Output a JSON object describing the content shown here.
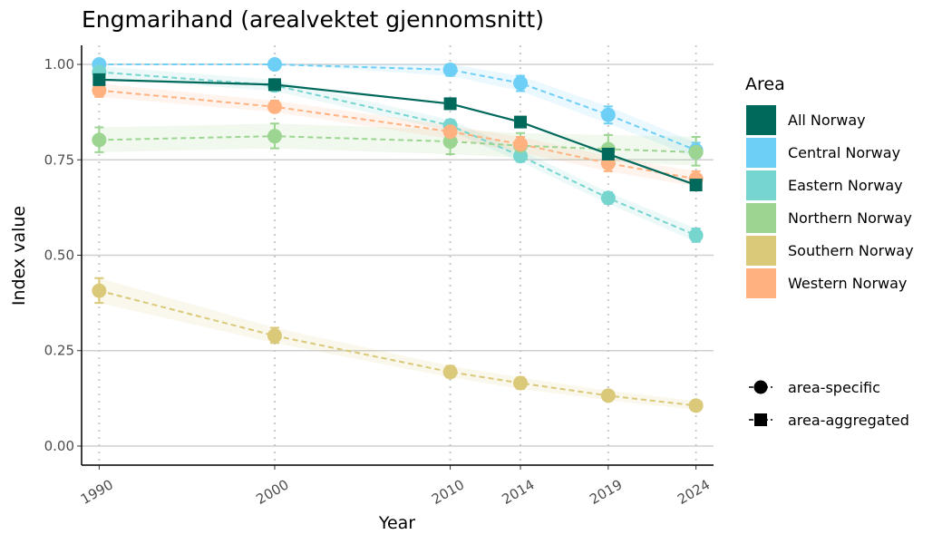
{
  "chart_data": {
    "type": "line",
    "title": "Engmarihand (arealvektet gjennomsnitt)",
    "xlabel": "Year",
    "ylabel": "Index value",
    "x": [
      1990,
      2000,
      2010,
      2014,
      2019,
      2024
    ],
    "xlim": [
      1989,
      2025
    ],
    "ylim": [
      -0.05,
      1.05
    ],
    "yticks": [
      0.0,
      0.25,
      0.5,
      0.75,
      1.0
    ],
    "ytick_labels": [
      "0.00",
      "0.25",
      "0.50",
      "0.75",
      "1.00"
    ],
    "grid": "horizontal major lines; dotted vertical lines at each year",
    "legend_position": "right",
    "legend_title": "Area",
    "series": [
      {
        "name": "All Norway",
        "color": "#00695c",
        "marker": "square",
        "line": "solid",
        "values": [
          0.96,
          0.947,
          0.897,
          0.849,
          0.765,
          0.684
        ]
      },
      {
        "name": "Central Norway",
        "color": "#6ecff6",
        "marker": "circle",
        "line": "dashed",
        "values": [
          1.0,
          1.0,
          0.986,
          0.951,
          0.868,
          0.775
        ],
        "lower": [
          1.0,
          1.0,
          0.97,
          0.93,
          0.845,
          0.755
        ],
        "upper": [
          1.0,
          1.0,
          1.0,
          0.97,
          0.89,
          0.795
        ]
      },
      {
        "name": "Eastern Norway",
        "color": "#76d5cf",
        "marker": "circle",
        "line": "dashed",
        "values": [
          0.98,
          0.945,
          0.84,
          0.76,
          0.65,
          0.552
        ],
        "lower": [
          0.965,
          0.93,
          0.825,
          0.745,
          0.635,
          0.535
        ],
        "upper": [
          0.995,
          0.96,
          0.855,
          0.775,
          0.665,
          0.57
        ]
      },
      {
        "name": "Northern Norway",
        "color": "#9cd591",
        "marker": "circle",
        "line": "dashed",
        "values": [
          0.802,
          0.812,
          0.798,
          0.787,
          0.778,
          0.77
        ],
        "lower": [
          0.77,
          0.78,
          0.765,
          0.755,
          0.745,
          0.735
        ],
        "upper": [
          0.835,
          0.845,
          0.83,
          0.82,
          0.815,
          0.81
        ]
      },
      {
        "name": "Southern Norway",
        "color": "#d9c979",
        "marker": "circle",
        "line": "dashed",
        "values": [
          0.407,
          0.289,
          0.194,
          0.165,
          0.132,
          0.106
        ],
        "lower": [
          0.375,
          0.27,
          0.18,
          0.15,
          0.12,
          0.095
        ],
        "upper": [
          0.44,
          0.31,
          0.21,
          0.18,
          0.145,
          0.118
        ]
      },
      {
        "name": "Western Norway",
        "color": "#ffb180",
        "marker": "circle",
        "line": "dashed",
        "values": [
          0.932,
          0.889,
          0.824,
          0.791,
          0.741,
          0.7
        ],
        "lower": [
          0.915,
          0.875,
          0.805,
          0.77,
          0.72,
          0.68
        ],
        "upper": [
          0.95,
          0.905,
          0.84,
          0.81,
          0.76,
          0.72
        ]
      }
    ],
    "shape_legend": [
      {
        "label": "area-specific",
        "marker": "circle"
      },
      {
        "label": "area-aggregated",
        "marker": "square"
      }
    ]
  }
}
